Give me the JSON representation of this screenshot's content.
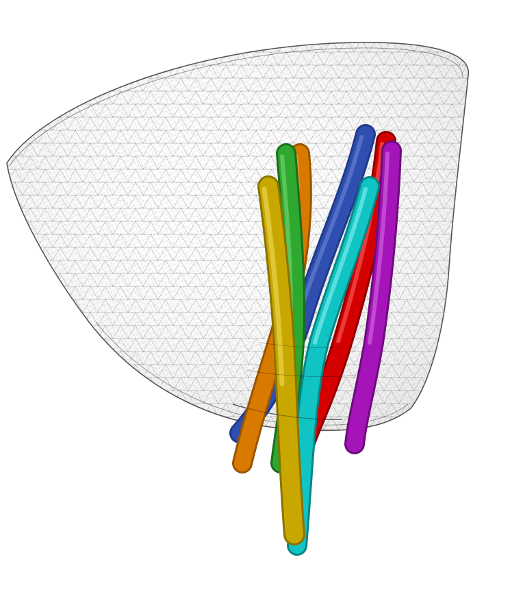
{
  "scene": {
    "background": "#ffffff",
    "mesh": {
      "kind": "triangulated-surface-wireframe",
      "edge_color": "#2b2b2b",
      "fill_color": "#ffffff"
    },
    "tubes": [
      {
        "name": "orange",
        "color": "#d97a00"
      },
      {
        "name": "blue",
        "color": "#2f4fb0"
      },
      {
        "name": "green",
        "color": "#2ea82e"
      },
      {
        "name": "red",
        "color": "#d40000"
      },
      {
        "name": "magenta",
        "color": "#a414b8"
      },
      {
        "name": "cyan",
        "color": "#10c4c4"
      },
      {
        "name": "yellow",
        "color": "#c8a800"
      }
    ]
  }
}
